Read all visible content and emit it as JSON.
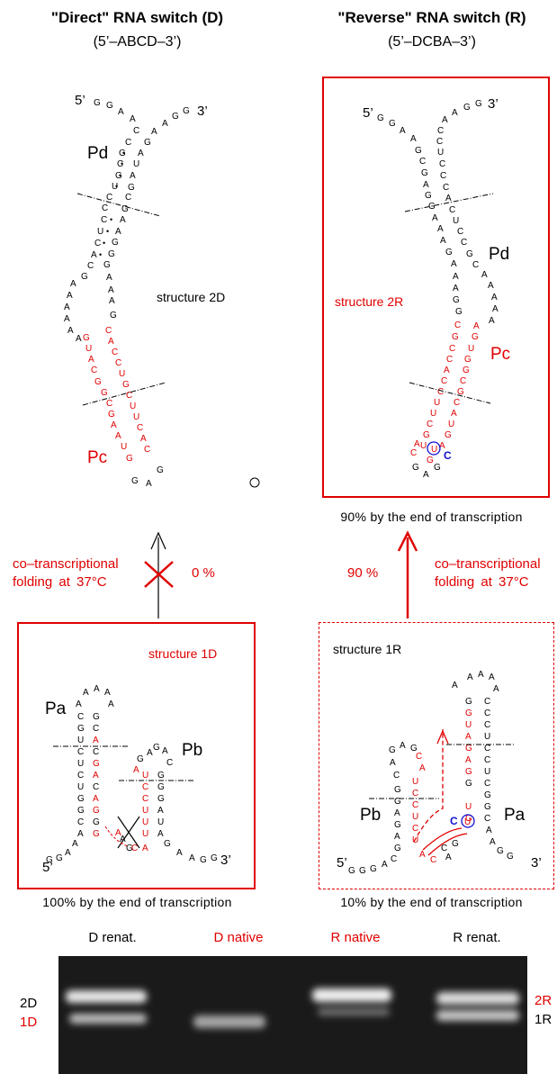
{
  "headers": {
    "direct_title": "\"Direct\" RNA switch (D)",
    "direct_sub": "(5’–ABCD–3’)",
    "reverse_title": "\"Reverse\" RNA switch (R)",
    "reverse_sub": "(5’–DCBA–3’)"
  },
  "structures": {
    "s2d": "structure 2D",
    "s2r": "structure 2R",
    "s1d": "structure 1D",
    "s1r": "structure 1R"
  },
  "helices": {
    "pd_left": "Pd",
    "pc_left": "Pc",
    "pd_right": "Pd",
    "pc_right": "Pc",
    "pa_left": "Pa",
    "pb_left": "Pb",
    "pb_right": "Pb",
    "pa_right": "Pa"
  },
  "ends": {
    "five": "5’",
    "three": "3’"
  },
  "folding": {
    "left_text_1": "co–transcriptional",
    "left_text_2": "folding  at 37°C",
    "left_pct": "0 %",
    "right_pct": "90 %",
    "right_text_1": "co–transcriptional",
    "right_text_2": "folding  at 37°C"
  },
  "captions": {
    "r_top": "90% by the end of transcription",
    "d_bottom": "100% by the end of transcription",
    "r_bottom": "10% by the end of transcription"
  },
  "gel": {
    "lanes": [
      "D renat.",
      "D native",
      "R native",
      "R renat."
    ],
    "left_bands": [
      "2D",
      "1D"
    ],
    "right_bands": [
      "2R",
      "1R"
    ]
  },
  "colors": {
    "accent_red": "#e00000",
    "highlight_blue": "#1010d0"
  }
}
